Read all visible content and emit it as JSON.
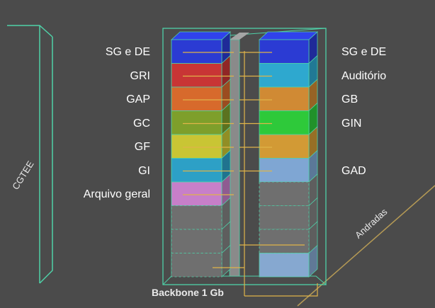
{
  "building_name": "CGTEE",
  "street_name": "Andradas",
  "backbone_label": "Backbone 1 Gb",
  "left_tower": {
    "floors": [
      {
        "label": "SG e DE",
        "color": "#2b3bd3"
      },
      {
        "label": "GRI",
        "color": "#c83535"
      },
      {
        "label": "GAP",
        "color": "#d76a2c"
      },
      {
        "label": "GC",
        "color": "#7e9f2b"
      },
      {
        "label": "GF",
        "color": "#c9c534"
      },
      {
        "label": "GI",
        "color": "#2da0c6"
      },
      {
        "label": "Arquivo geral",
        "color": "#c77fc9"
      },
      {
        "label": "",
        "color": "#707070"
      },
      {
        "label": "",
        "color": "#707070"
      },
      {
        "label": "",
        "color": "#707070"
      }
    ]
  },
  "right_tower": {
    "floors": [
      {
        "label": "SG e DE",
        "color": "#2b3bd3"
      },
      {
        "label": "Auditório",
        "color": "#2ea8cf"
      },
      {
        "label": "GB",
        "color": "#d08a34"
      },
      {
        "label": "GIN",
        "color": "#2ec93a"
      },
      {
        "label": "",
        "color": "#d29a35"
      },
      {
        "label": "GAD",
        "color": "#7fa6d3"
      },
      {
        "label": "",
        "color": "#707070"
      },
      {
        "label": "",
        "color": "#707070"
      },
      {
        "label": "",
        "color": "#707070"
      },
      {
        "label": "",
        "color": "#86a8d0"
      }
    ]
  },
  "colors": {
    "background": "#4b4b4b",
    "outline": "#4fd1a8",
    "cable": "#e0b449",
    "spine": "#8a8a8a"
  }
}
